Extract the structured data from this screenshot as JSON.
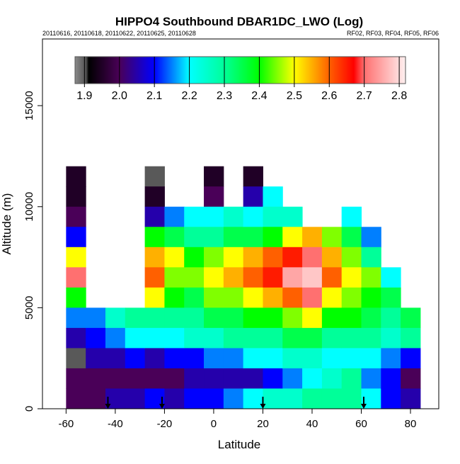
{
  "chart_data": {
    "type": "heatmap",
    "title": "HIPPO4 Southbound DBAR1DC_LWO (Log)",
    "subtitle_left": "20110616, 20110618, 20110622, 20110625, 20110628",
    "subtitle_right": "RF02, RF03, RF04, RF05, RF06",
    "xlabel": "Latitude",
    "ylabel": "Altitude (m)",
    "xlim": [
      -69.6,
      91.5
    ],
    "ylim": [
      0,
      18300
    ],
    "x_ticks": [
      -60,
      -40,
      -20,
      0,
      20,
      40,
      60,
      80
    ],
    "x_tick_labels": [
      "-60",
      "-40",
      "-20",
      "0",
      "20",
      "40",
      "60",
      "80"
    ],
    "y_ticks": [
      0,
      5000,
      10000,
      15000
    ],
    "y_tick_labels": [
      "0",
      "5000",
      "10000",
      "15000"
    ],
    "colorbar": {
      "range": [
        1.873,
        2.818
      ],
      "ticks": [
        1.9,
        2.0,
        2.1,
        2.2,
        2.3,
        2.4,
        2.5,
        2.6,
        2.7,
        2.8
      ],
      "tick_labels": [
        "1.9",
        "2.0",
        "2.1",
        "2.2",
        "2.3",
        "2.4",
        "2.5",
        "2.6",
        "2.7",
        "2.8"
      ],
      "stops": [
        [
          1.873,
          "#8a8a8a"
        ],
        [
          1.905,
          "#505050"
        ],
        [
          1.912,
          "#000000"
        ],
        [
          2.0,
          "#4a0058"
        ],
        [
          2.1,
          "#0000ff"
        ],
        [
          2.2,
          "#00ffff"
        ],
        [
          2.3,
          "#00ff99"
        ],
        [
          2.4,
          "#00ff00"
        ],
        [
          2.5,
          "#ffff00"
        ],
        [
          2.6,
          "#ff6000"
        ],
        [
          2.67,
          "#ff0000"
        ],
        [
          2.7,
          "#ff7070"
        ],
        [
          2.818,
          "#fff0f0"
        ]
      ]
    },
    "lat_bins": [
      -56,
      -48,
      -40,
      -32,
      -24,
      -16,
      -8,
      0,
      8,
      16,
      24,
      32,
      40,
      48,
      56,
      64,
      72,
      80
    ],
    "lat_bin_width": 8,
    "alt_bins": [
      11500,
      10500,
      9500,
      8500,
      7500,
      6500,
      5500,
      4500,
      3500,
      2500,
      1500,
      500
    ],
    "alt_bin_height": 1000,
    "values_by_lat": [
      [
        1.95,
        1.95,
        2.0,
        2.1,
        2.5,
        2.7,
        2.4,
        2.15,
        2.05,
        1.9,
        2.0,
        2.0
      ],
      [
        null,
        null,
        null,
        null,
        null,
        null,
        null,
        2.15,
        2.1,
        2.05,
        2.0,
        2.0
      ],
      [
        null,
        null,
        null,
        null,
        null,
        null,
        null,
        2.25,
        2.15,
        2.05,
        2.0,
        2.05
      ],
      [
        null,
        null,
        null,
        null,
        null,
        null,
        null,
        2.3,
        2.2,
        2.1,
        2.0,
        2.05
      ],
      [
        1.9,
        1.95,
        2.05,
        2.4,
        2.55,
        2.6,
        2.5,
        2.3,
        2.2,
        2.05,
        2.0,
        2.1
      ],
      [
        null,
        null,
        2.15,
        2.35,
        2.5,
        2.45,
        2.4,
        2.3,
        2.2,
        2.1,
        2.0,
        2.05
      ],
      [
        null,
        null,
        2.2,
        2.3,
        2.4,
        2.45,
        2.35,
        2.3,
        2.25,
        2.1,
        2.05,
        2.1
      ],
      [
        1.95,
        2.0,
        2.2,
        2.3,
        2.45,
        2.5,
        2.45,
        2.35,
        2.25,
        2.15,
        2.05,
        2.1
      ],
      [
        null,
        null,
        2.25,
        2.35,
        2.5,
        2.55,
        2.45,
        2.35,
        2.3,
        2.15,
        2.05,
        2.15
      ],
      [
        1.95,
        2.05,
        2.2,
        2.35,
        2.55,
        2.6,
        2.5,
        2.4,
        2.3,
        2.2,
        2.05,
        2.2
      ],
      [
        null,
        2.2,
        2.25,
        2.4,
        2.6,
        2.65,
        2.55,
        2.4,
        2.3,
        2.2,
        2.1,
        2.25
      ],
      [
        null,
        null,
        2.25,
        2.5,
        2.65,
        2.75,
        2.6,
        2.45,
        2.35,
        2.25,
        2.15,
        2.25
      ],
      [
        null,
        null,
        null,
        2.55,
        2.7,
        2.78,
        2.7,
        2.5,
        2.35,
        2.25,
        2.2,
        2.3
      ],
      [
        null,
        null,
        null,
        2.45,
        2.55,
        2.6,
        2.5,
        2.4,
        2.3,
        2.2,
        2.25,
        2.3
      ],
      [
        null,
        null,
        2.2,
        2.35,
        2.45,
        2.5,
        2.45,
        2.4,
        2.3,
        2.2,
        2.3,
        2.3
      ],
      [
        null,
        null,
        null,
        2.15,
        2.3,
        2.45,
        2.4,
        2.35,
        2.3,
        2.2,
        2.15,
        2.2
      ],
      [
        null,
        null,
        null,
        null,
        null,
        2.2,
        2.35,
        2.3,
        2.25,
        2.15,
        2.1,
        2.1
      ],
      [
        null,
        null,
        null,
        null,
        null,
        null,
        null,
        2.35,
        2.3,
        2.1,
        2.0,
        2.05
      ]
    ],
    "flight_markers_lat": [
      -43,
      -21,
      20,
      61
    ],
    "grid": false
  }
}
